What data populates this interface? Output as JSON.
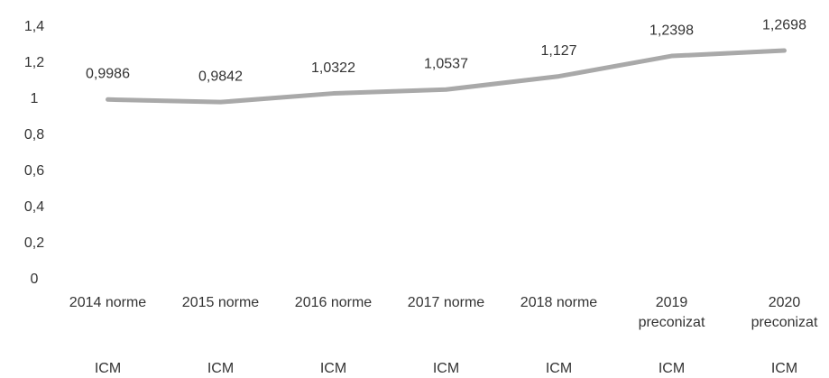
{
  "chart_data": {
    "type": "line",
    "categories": [
      "2014 norme",
      "2015 norme",
      "2016 norme",
      "2017 norme",
      "2018 norme",
      "2019 preconizat",
      "2020 preconizat"
    ],
    "category_sublabels": [
      "ICM",
      "ICM",
      "ICM",
      "ICM",
      "ICM",
      "ICM",
      "ICM"
    ],
    "series": [
      {
        "color": "#a9a9a9",
        "values": [
          0.9986,
          0.9842,
          1.0322,
          1.0537,
          1.127,
          1.2398,
          1.2698
        ],
        "value_labels": [
          "0,9986",
          "0,9842",
          "1,0322",
          "1,0537",
          "1,127",
          "1,2398",
          "1,2698"
        ]
      }
    ],
    "ylim": [
      0,
      1.4
    ],
    "yticks": [
      0,
      {
        "value": 0.2,
        "label": "0,2"
      },
      {
        "value": 0.4,
        "label": "0,4"
      },
      {
        "value": 0.6,
        "label": "0,6"
      },
      {
        "value": 0.8,
        "label": "0,8"
      },
      1,
      {
        "value": 1.2,
        "label": "1,2"
      },
      {
        "value": 1.4,
        "label": "1,4"
      }
    ],
    "grid": false
  }
}
